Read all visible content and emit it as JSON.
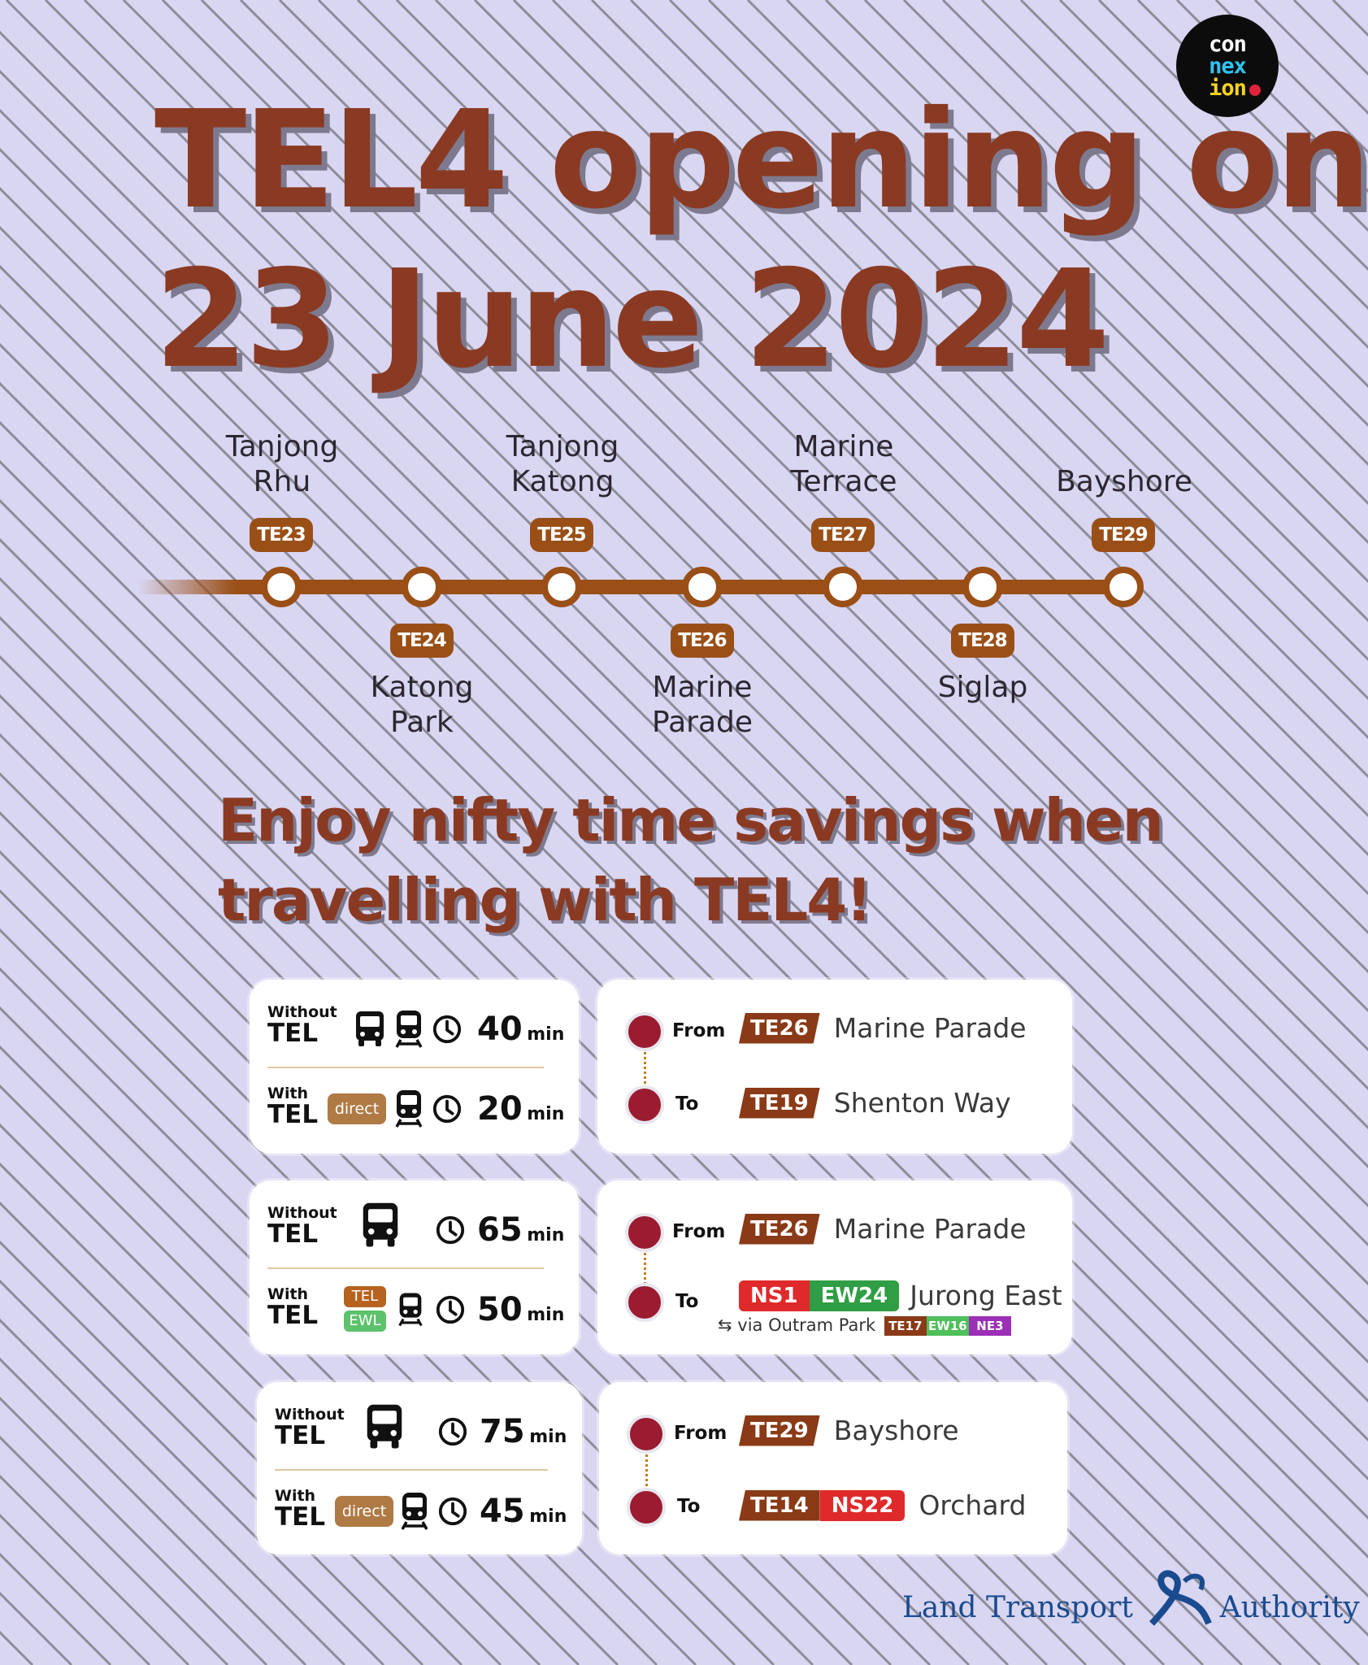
{
  "header": {
    "title_line1": "TEL4 opening on",
    "title_line2": "23 June 2024",
    "logo": {
      "line1": "con",
      "line2": "nex",
      "line3": "ion"
    }
  },
  "line_map": {
    "line_color": "#9a4f17",
    "stations": [
      {
        "code": "TE23",
        "name_line1": "Tanjong",
        "name_line2": "Rhu"
      },
      {
        "code": "TE24",
        "name_line1": "Katong",
        "name_line2": "Park"
      },
      {
        "code": "TE25",
        "name_line1": "Tanjong",
        "name_line2": "Katong"
      },
      {
        "code": "TE26",
        "name_line1": "Marine",
        "name_line2": "Parade"
      },
      {
        "code": "TE27",
        "name_line1": "Marine",
        "name_line2": "Terrace"
      },
      {
        "code": "TE28",
        "name_line1": "Siglap",
        "name_line2": ""
      },
      {
        "code": "TE29",
        "name_line1": "Bayshore",
        "name_line2": ""
      }
    ]
  },
  "subtitle": {
    "line1": "Enjoy nifty time savings when",
    "line2": "travelling with TEL4!"
  },
  "comparisons": [
    {
      "without": {
        "small": "Without",
        "big": "TEL",
        "icons": [
          "bus-icon",
          "train-icon"
        ],
        "minutes": "40",
        "unit": "min"
      },
      "with": {
        "small": "With",
        "big": "TEL",
        "tag": "direct",
        "icons": [
          "train-icon"
        ],
        "minutes": "20",
        "unit": "min"
      },
      "route": {
        "from_label": "From",
        "from_codes": [
          "TE26"
        ],
        "from_name": "Marine Parade",
        "to_label": "To",
        "to_codes": [
          "TE19"
        ],
        "to_name": "Shenton Way"
      }
    },
    {
      "without": {
        "small": "Without",
        "big": "TEL",
        "icons": [
          "bus-icon"
        ],
        "minutes": "65",
        "unit": "min"
      },
      "with": {
        "small": "With",
        "big": "TEL",
        "tags": [
          "TEL",
          "EWL"
        ],
        "icons": [
          "train-icon"
        ],
        "minutes": "50",
        "unit": "min"
      },
      "route": {
        "from_label": "From",
        "from_codes": [
          "TE26"
        ],
        "from_name": "Marine Parade",
        "to_label": "To",
        "to_codes": [
          "NS1",
          "EW24"
        ],
        "to_name": "Jurong East",
        "via_text": "via Outram Park",
        "via_codes": [
          "TE17",
          "EW16",
          "NE3"
        ]
      }
    },
    {
      "without": {
        "small": "Without",
        "big": "TEL",
        "icons": [
          "bus-icon"
        ],
        "minutes": "75",
        "unit": "min"
      },
      "with": {
        "small": "With",
        "big": "TEL",
        "tag": "direct",
        "icons": [
          "train-icon"
        ],
        "minutes": "45",
        "unit": "min"
      },
      "route": {
        "from_label": "From",
        "from_codes": [
          "TE29"
        ],
        "from_name": "Bayshore",
        "to_label": "To",
        "to_codes": [
          "TE14",
          "NS22"
        ],
        "to_name": "Orchard"
      }
    }
  ],
  "footer": {
    "left": "Land Transport",
    "right": "Authority"
  },
  "colors": {
    "background": "#d9d6f2",
    "title": "#8a3a22",
    "te_line": "#8a3a17",
    "ns_line": "#e0292b",
    "ew_line": "#2f9e44",
    "ne_line": "#9b2fb5",
    "route_dot": "#9b1b30"
  }
}
